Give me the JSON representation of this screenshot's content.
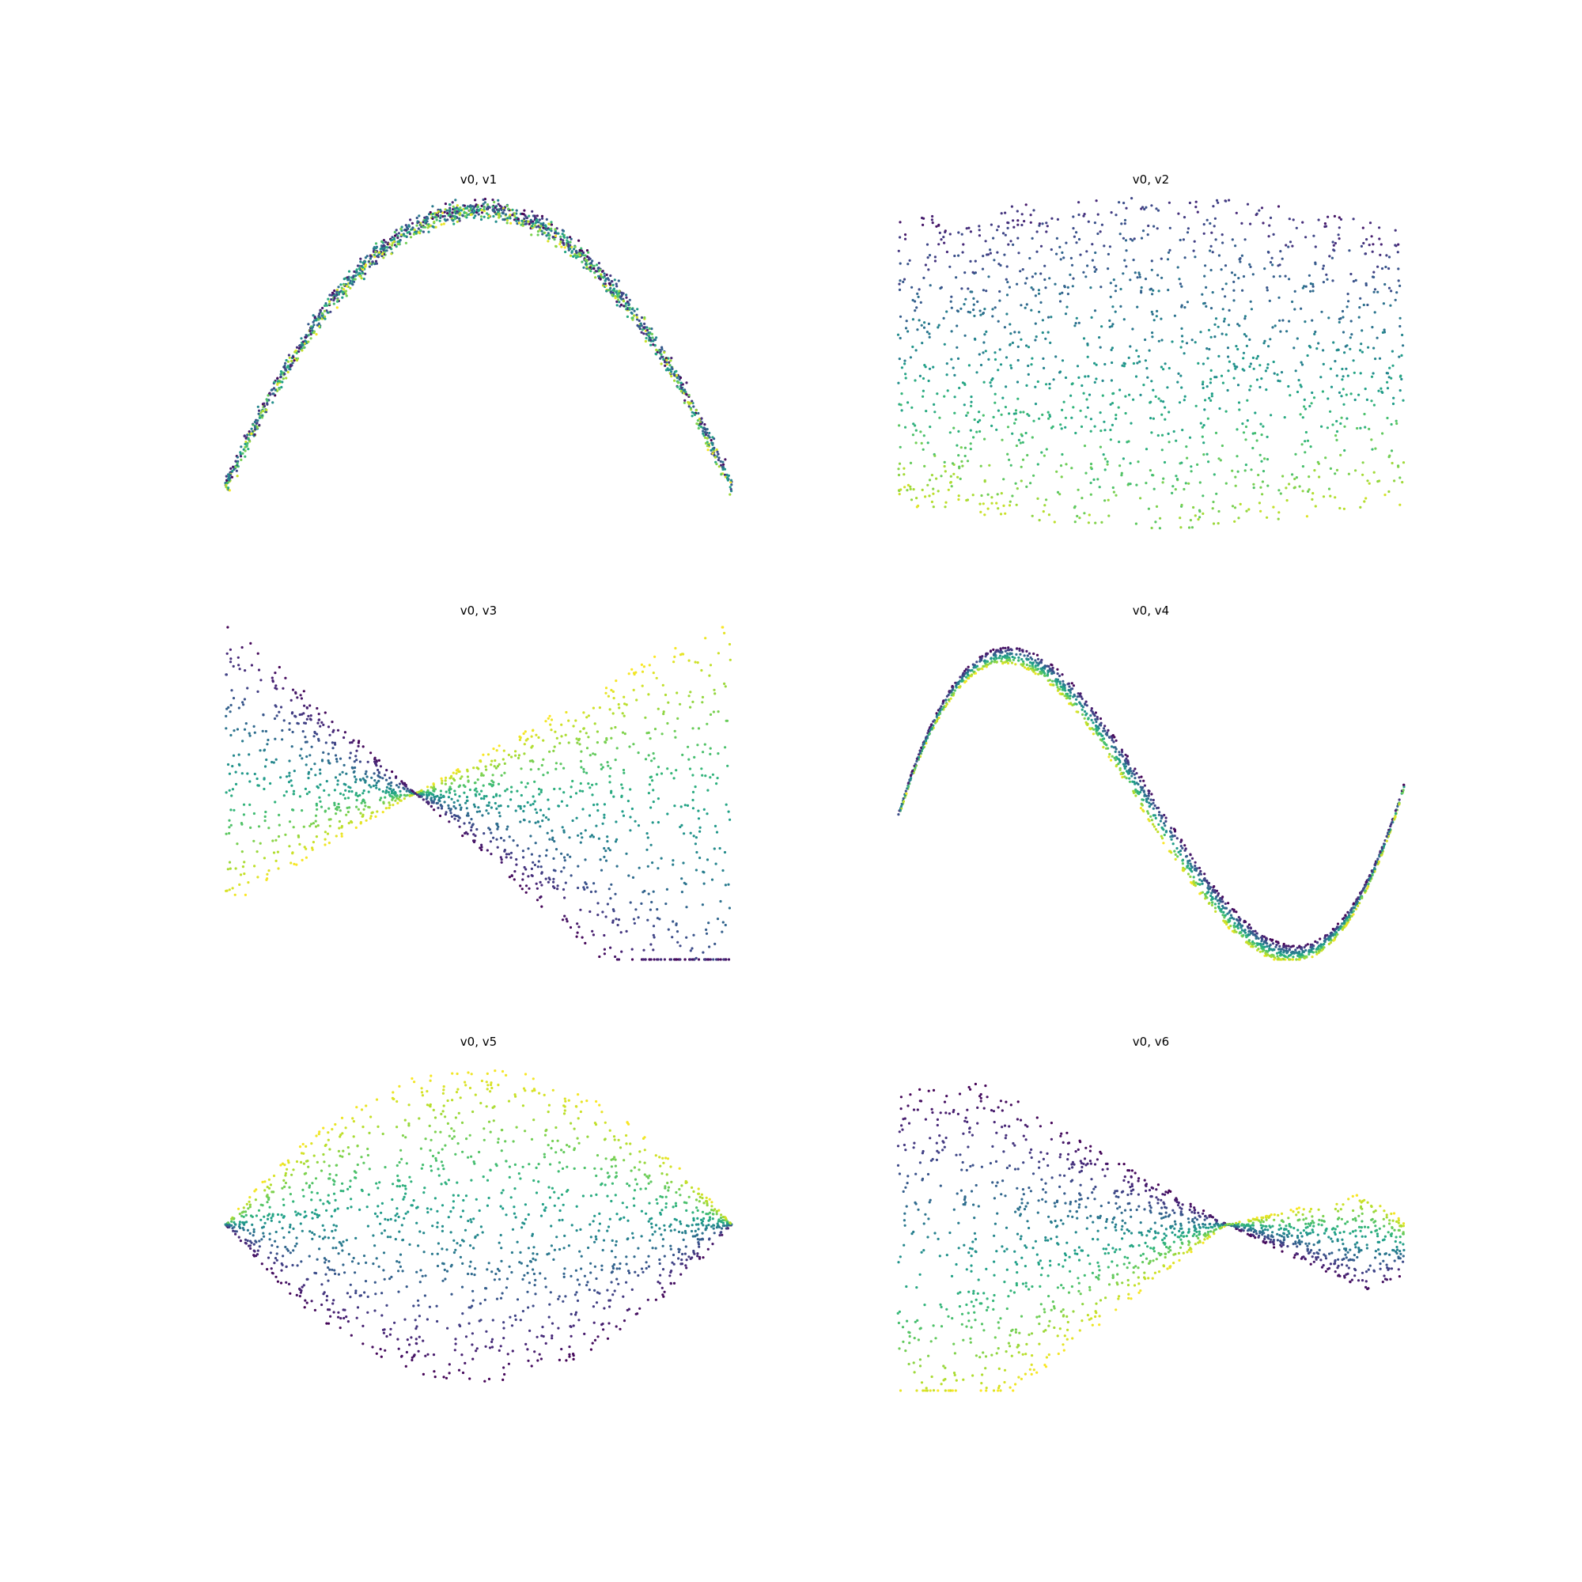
{
  "chart_data": [
    {
      "type": "scatter",
      "title": "v0, v1",
      "shape": "parabola",
      "axes": "off",
      "colormap": "viridis",
      "x_range": [
        -1,
        1
      ],
      "y_range": [
        -0.15,
        1.05
      ],
      "n_points": 1500
    },
    {
      "type": "scatter",
      "title": "v0, v2",
      "shape": "filled-rectangle",
      "axes": "off",
      "colormap": "viridis",
      "x_range": [
        -1,
        1
      ],
      "y_range": [
        -1,
        1
      ],
      "n_points": 1500
    },
    {
      "type": "scatter",
      "title": "v0, v3",
      "shape": "bowtie",
      "axes": "off",
      "colormap": "viridis",
      "x_range": [
        -1,
        1
      ],
      "y_range": [
        -1,
        1
      ],
      "n_points": 1500
    },
    {
      "type": "scatter",
      "title": "v0, v4",
      "shape": "cubic",
      "axes": "off",
      "colormap": "viridis",
      "x_range": [
        -1,
        1
      ],
      "y_range": [
        -1.05,
        1.05
      ],
      "n_points": 1500
    },
    {
      "type": "scatter",
      "title": "v0, v5",
      "shape": "lens",
      "axes": "off",
      "colormap": "viridis",
      "x_range": [
        -1,
        1
      ],
      "y_range": [
        -1,
        1
      ],
      "n_points": 1500
    },
    {
      "type": "scatter",
      "title": "v0, v6",
      "shape": "asymmetric-bowtie",
      "axes": "off",
      "colormap": "viridis",
      "x_range": [
        -1,
        1
      ],
      "y_range": [
        -1,
        1
      ],
      "n_points": 1500
    }
  ],
  "colors": {
    "viridis": [
      "#440154",
      "#482878",
      "#3e4989",
      "#31688e",
      "#26828e",
      "#1f9e89",
      "#35b779",
      "#6ece58",
      "#b5de2b",
      "#fde725"
    ]
  }
}
